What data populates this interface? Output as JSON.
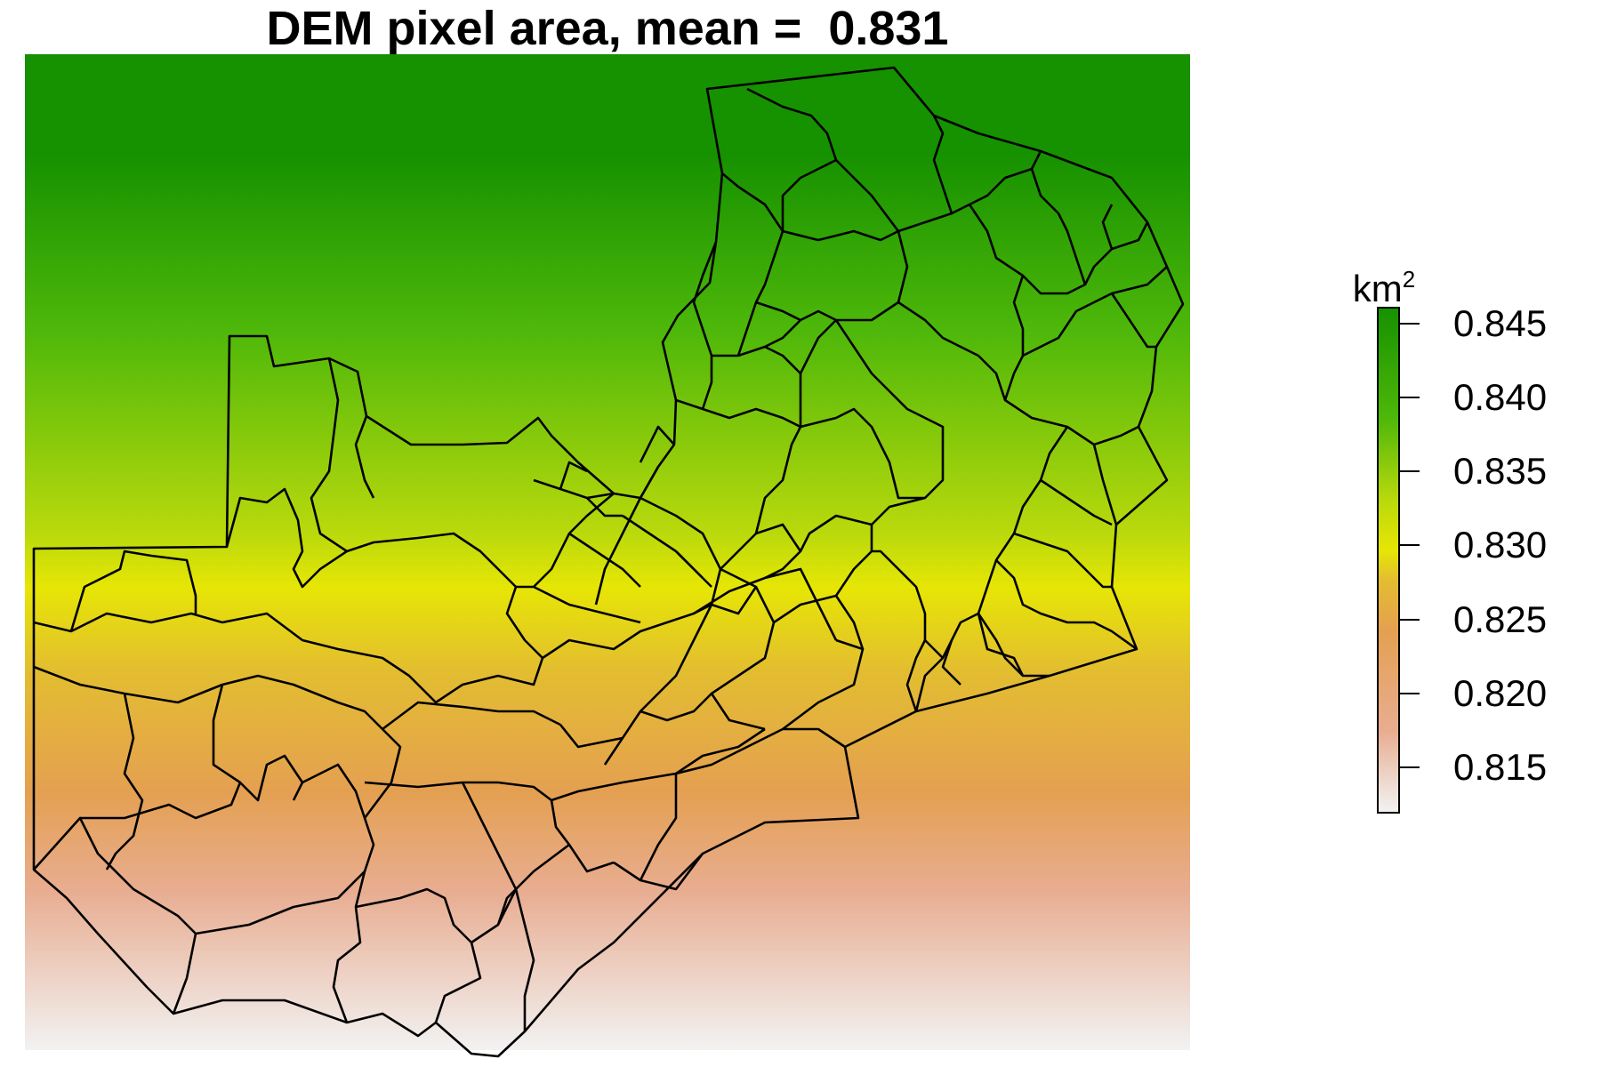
{
  "map": {
    "title": "DEM pixel area, mean =  0.831",
    "colors": {
      "dark_green": "#169100",
      "green": "#4fb80a",
      "yellow_green": "#b9d90c",
      "yellow": "#e6e605",
      "gold": "#e3bd30",
      "orange": "#e4a051",
      "salmon": "#e8ad91",
      "pale": "#f2f2f2",
      "boundary": "#000000"
    }
  },
  "legend": {
    "unit_base": "km",
    "unit_exp": "2",
    "min": 0.812,
    "max": 0.846,
    "ticks": [
      {
        "value": 0.845,
        "label": "0.845"
      },
      {
        "value": 0.84,
        "label": "0.840"
      },
      {
        "value": 0.835,
        "label": "0.835"
      },
      {
        "value": 0.83,
        "label": "0.830"
      },
      {
        "value": 0.825,
        "label": "0.825"
      },
      {
        "value": 0.82,
        "label": "0.820"
      },
      {
        "value": 0.815,
        "label": "0.815"
      }
    ]
  }
}
